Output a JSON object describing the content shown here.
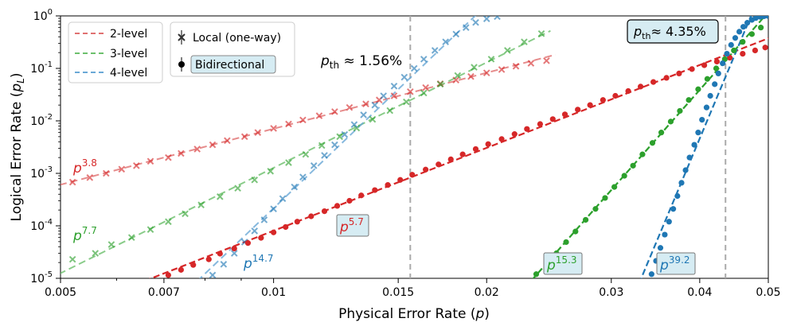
{
  "chart_data": {
    "type": "scatter",
    "x_scale": "log",
    "y_scale": "log",
    "xlim": [
      0.005,
      0.05
    ],
    "ylim": [
      1e-05,
      1
    ],
    "xlabel": "Physical Error Rate (p)",
    "ylabel": "Logical Error Rate (p_L)",
    "xlabel_main": "Physical Error Rate (",
    "xlabel_var": "p",
    "xlabel_close": ")",
    "ylabel_main": "Logical Error Rate (",
    "ylabel_var": "p",
    "ylabel_sub": "L",
    "ylabel_close": ")",
    "x_ticks": [
      0.005,
      0.007,
      0.01,
      0.015,
      0.02,
      0.03,
      0.04,
      0.05
    ],
    "x_tick_labels": [
      "0.005",
      "0.007",
      "0.01",
      "0.015",
      "0.02",
      "0.03",
      "0.04",
      "0.05"
    ],
    "y_ticks": [
      1e-05,
      0.0001,
      0.001,
      0.01,
      0.1,
      1
    ],
    "y_tick_exponents": [
      "-5",
      "-4",
      "-3",
      "-2",
      "-1",
      "0"
    ],
    "y_tick_base": "10",
    "grid": false,
    "colors": {
      "red": "#d62728",
      "green": "#2ca02c",
      "blue": "#1f77b4",
      "threshold_line": "#aaaaaa",
      "badge_fill": "#d6ecf3"
    },
    "legend_levels": {
      "placement": "top-left",
      "entries": [
        "2-level",
        "3-level",
        "4-level"
      ]
    },
    "legend_markers": {
      "placement": "top-left",
      "entries": [
        "Local (one-way)",
        "Bidirectional"
      ]
    },
    "thresholds": [
      {
        "value": 0.0156,
        "label_main": "p",
        "label_sub": "th",
        "label_rest": " ≈ 1.56%"
      },
      {
        "value": 0.0435,
        "label_main": "p",
        "label_sub": "th",
        "label_rest": "≈ 4.35%"
      }
    ],
    "fits": [
      {
        "label_main": "p",
        "exponent": "3.8",
        "style": "local"
      },
      {
        "label_main": "p",
        "exponent": "7.7",
        "style": "local"
      },
      {
        "label_main": "p",
        "exponent": "14.7",
        "style": "local"
      },
      {
        "label_main": "p",
        "exponent": "5.7",
        "style": "bidirectional"
      },
      {
        "label_main": "p",
        "exponent": "15.3",
        "style": "bidirectional"
      },
      {
        "label_main": "p",
        "exponent": "39.2",
        "style": "bidirectional"
      }
    ],
    "series": [
      {
        "name": "2-level",
        "marker": "x",
        "fit_exponent": 3.8,
        "x": [
          0.0052,
          0.0055,
          0.0058,
          0.0061,
          0.0064,
          0.0067,
          0.0071,
          0.0074,
          0.0078,
          0.0082,
          0.0086,
          0.0091,
          0.0095,
          0.01,
          0.0105,
          0.011,
          0.0116,
          0.0122,
          0.0128,
          0.0135,
          0.0141,
          0.0148,
          0.0156,
          0.0164,
          0.0172,
          0.0181,
          0.019,
          0.02,
          0.021,
          0.022,
          0.0231,
          0.0243
        ],
        "y": [
          0.00068,
          0.00083,
          0.001,
          0.0012,
          0.0014,
          0.0017,
          0.002,
          0.0024,
          0.0029,
          0.0035,
          0.0042,
          0.005,
          0.006,
          0.0072,
          0.0087,
          0.0104,
          0.0125,
          0.015,
          0.018,
          0.021,
          0.025,
          0.03,
          0.036,
          0.043,
          0.051,
          0.06,
          0.07,
          0.082,
          0.095,
          0.11,
          0.125,
          0.14
        ]
      },
      {
        "name": "3-level",
        "marker": "x",
        "fit_exponent": 7.7,
        "x": [
          0.0052,
          0.0056,
          0.0059,
          0.0063,
          0.0067,
          0.0071,
          0.0075,
          0.0079,
          0.0084,
          0.0089,
          0.0094,
          0.0099,
          0.0105,
          0.0111,
          0.0117,
          0.0124,
          0.0131,
          0.0138,
          0.0146,
          0.0154,
          0.0163,
          0.0172,
          0.0182,
          0.0192,
          0.0203,
          0.0214,
          0.0226,
          0.0239
        ],
        "y": [
          2.3e-05,
          3e-05,
          4.4e-05,
          6e-05,
          8.5e-05,
          0.00012,
          0.00017,
          0.00025,
          0.00036,
          0.00052,
          0.00075,
          0.0011,
          0.0016,
          0.0023,
          0.0034,
          0.005,
          0.0073,
          0.0107,
          0.0157,
          0.023,
          0.034,
          0.05,
          0.073,
          0.105,
          0.15,
          0.22,
          0.32,
          0.46
        ]
      },
      {
        "name": "4-level",
        "marker": "x",
        "fit_exponent": 14.7,
        "x": [
          0.0082,
          0.0085,
          0.0088,
          0.0091,
          0.0094,
          0.0097,
          0.01,
          0.0103,
          0.0107,
          0.011,
          0.0114,
          0.0118,
          0.0122,
          0.0126,
          0.013,
          0.0134,
          0.0139,
          0.0143,
          0.0148,
          0.0153,
          0.0158,
          0.0163,
          0.0169,
          0.0175,
          0.0181,
          0.0187,
          0.0193,
          0.02,
          0.0207
        ],
        "y": [
          1.15e-05,
          1.85e-05,
          3e-05,
          4.9e-05,
          8e-05,
          0.00013,
          0.00021,
          0.00033,
          0.00055,
          0.00085,
          0.0014,
          0.0022,
          0.0035,
          0.0055,
          0.0085,
          0.013,
          0.02,
          0.03,
          0.046,
          0.068,
          0.1,
          0.15,
          0.22,
          0.32,
          0.45,
          0.6,
          0.75,
          0.88,
          0.97
        ]
      },
      {
        "name": "2-level",
        "marker": "circle",
        "fit_exponent": 5.7,
        "x": [
          0.0071,
          0.0074,
          0.0077,
          0.0081,
          0.0084,
          0.0088,
          0.0092,
          0.0096,
          0.01,
          0.0104,
          0.0108,
          0.0113,
          0.0118,
          0.0123,
          0.0128,
          0.0133,
          0.0139,
          0.0145,
          0.0151,
          0.0157,
          0.0164,
          0.0171,
          0.0178,
          0.0185,
          0.0193,
          0.0201,
          0.021,
          0.0219,
          0.0228,
          0.0238,
          0.0248,
          0.0258,
          0.0269,
          0.028,
          0.0292,
          0.0304,
          0.0317,
          0.033,
          0.0344,
          0.0359,
          0.0374,
          0.039,
          0.0406,
          0.0423,
          0.0441,
          0.046,
          0.0479,
          0.0495
        ],
        "y": [
          1.15e-05,
          1.45e-05,
          1.8e-05,
          2.3e-05,
          2.95e-05,
          3.7e-05,
          4.7e-05,
          5.9e-05,
          7.5e-05,
          9.5e-05,
          0.00012,
          0.000152,
          0.00019,
          0.00024,
          0.0003,
          0.00038,
          0.00048,
          0.0006,
          0.00075,
          0.00094,
          0.00118,
          0.00148,
          0.00185,
          0.0023,
          0.0029,
          0.0036,
          0.0045,
          0.0056,
          0.007,
          0.0087,
          0.0108,
          0.0133,
          0.0164,
          0.02,
          0.025,
          0.03,
          0.037,
          0.045,
          0.055,
          0.066,
          0.08,
          0.097,
          0.115,
          0.135,
          0.16,
          0.19,
          0.22,
          0.25
        ]
      },
      {
        "name": "3-level",
        "marker": "circle",
        "fit_exponent": 15.3,
        "x": [
          0.0235,
          0.0243,
          0.0251,
          0.0259,
          0.0267,
          0.0276,
          0.0285,
          0.0294,
          0.0303,
          0.0313,
          0.0322,
          0.0332,
          0.0343,
          0.0353,
          0.0364,
          0.0375,
          0.0386,
          0.0398,
          0.041,
          0.0422,
          0.0434,
          0.0447,
          0.046,
          0.0474,
          0.0488
        ],
        "y": [
          1.2e-05,
          1.9e-05,
          3e-05,
          4.9e-05,
          7.8e-05,
          0.00013,
          0.00021,
          0.00034,
          0.00055,
          0.0009,
          0.0014,
          0.0023,
          0.0038,
          0.006,
          0.0097,
          0.0155,
          0.025,
          0.04,
          0.063,
          0.1,
          0.15,
          0.22,
          0.32,
          0.45,
          0.6
        ]
      },
      {
        "name": "4-level",
        "marker": "circle",
        "fit_exponent": 39.2,
        "x": [
          0.0342,
          0.0347,
          0.0352,
          0.0357,
          0.0362,
          0.0367,
          0.0372,
          0.0377,
          0.0382,
          0.0387,
          0.0393,
          0.0398,
          0.0403,
          0.0409,
          0.0414,
          0.042,
          0.0425,
          0.0431,
          0.0437,
          0.0443,
          0.0449,
          0.0455,
          0.0461,
          0.0467,
          0.0474,
          0.048,
          0.0487,
          0.0493,
          0.05
        ],
        "y": [
          1.2e-05,
          2.15e-05,
          3.8e-05,
          6.8e-05,
          0.00012,
          0.00021,
          0.00037,
          0.00066,
          0.00115,
          0.002,
          0.0035,
          0.006,
          0.0105,
          0.018,
          0.03,
          0.05,
          0.08,
          0.125,
          0.19,
          0.28,
          0.38,
          0.5,
          0.62,
          0.74,
          0.84,
          0.91,
          0.96,
          0.985,
          0.995
        ]
      }
    ]
  }
}
